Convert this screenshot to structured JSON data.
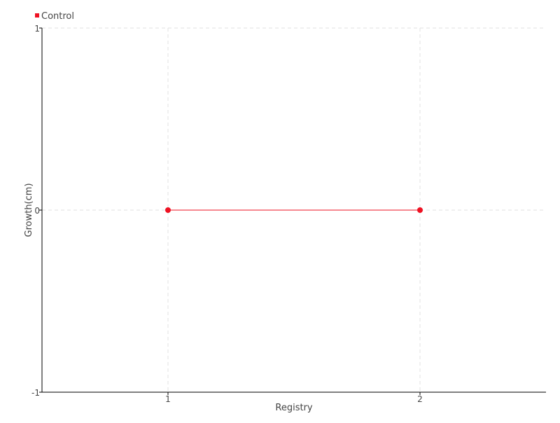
{
  "chart_data": {
    "type": "line",
    "title": "",
    "xlabel": "Registry",
    "ylabel": "Growth(cm)",
    "xlim": [
      0.5,
      2.5
    ],
    "ylim": [
      -1,
      1
    ],
    "xticks": [
      1,
      2
    ],
    "yticks": [
      -1,
      0,
      1
    ],
    "grid": true,
    "legend_placement": "top-left",
    "series": [
      {
        "name": "Control",
        "color": "#ee1122",
        "x": [
          1,
          2
        ],
        "y": [
          0,
          0
        ]
      }
    ]
  }
}
